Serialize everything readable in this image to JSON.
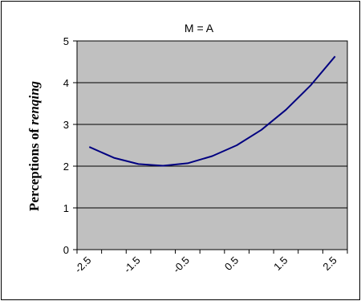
{
  "chart_data": {
    "type": "line",
    "title": "M = A",
    "ylabel": "Perceptions of",
    "ylabel_italic": "renqing",
    "xlabel": "",
    "x_ticks": [
      "-2.5",
      "-1.5",
      "-0.5",
      "0.5",
      "1.5",
      "2.5"
    ],
    "y_ticks": [
      "0",
      "1",
      "2",
      "3",
      "4",
      "5"
    ],
    "xlim": [
      -2.75,
      2.75
    ],
    "ylim": [
      0,
      5
    ],
    "grid": true,
    "legend": "none",
    "series": [
      {
        "x": [
          -2.5,
          -2.0,
          -1.5,
          -1.0,
          -0.5,
          0.0,
          0.5,
          1.0,
          1.5,
          2.0,
          2.5
        ],
        "y": [
          2.46,
          2.2,
          2.05,
          2.01,
          2.07,
          2.24,
          2.5,
          2.87,
          3.35,
          3.93,
          4.63
        ]
      }
    ],
    "colors": {
      "plot_background": "#c0c0c0",
      "line": "#000080",
      "gridline": "#000000"
    }
  }
}
